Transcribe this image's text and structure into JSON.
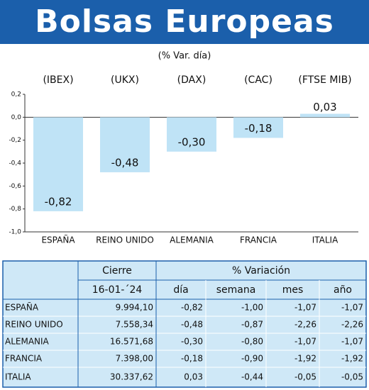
{
  "chart_data": {
    "type": "bar",
    "title": "Bolsas Europeas",
    "subtitle": "(% Var. día)",
    "codes": [
      "(IBEX)",
      "(UKX)",
      "(DAX)",
      "(CAC)",
      "(FTSE MIB)"
    ],
    "categories": [
      "ESPAÑA",
      "REINO UNIDO",
      "ALEMANIA",
      "FRANCIA",
      "ITALIA"
    ],
    "values": [
      -0.82,
      -0.48,
      -0.3,
      -0.18,
      0.03
    ],
    "value_labels": [
      "-0,82",
      "-0,48",
      "-0,30",
      "-0,18",
      "0,03"
    ],
    "color": "#bfe3f6",
    "ylim": [
      -1.0,
      0.2
    ],
    "yticks": [
      {
        "value": 0.2,
        "label": "0,2"
      },
      {
        "value": 0.0,
        "label": "0,0"
      },
      {
        "value": -0.2,
        "label": "-0,2"
      },
      {
        "value": -0.4,
        "label": "-0,4"
      },
      {
        "value": -0.6,
        "label": "-0,6"
      },
      {
        "value": -0.8,
        "label": "-0,8"
      },
      {
        "value": -1.0,
        "label": "-1,0"
      }
    ]
  },
  "table": {
    "group_headers": [
      "Cierre",
      "% Variación"
    ],
    "headers": [
      "16-01-´24",
      "día",
      "semana",
      "mes",
      "año"
    ],
    "rows": [
      [
        "ESPAÑA",
        "9.994,10",
        "-0,82",
        "-1,00",
        "-1,07",
        "-1,07"
      ],
      [
        "REINO UNIDO",
        "7.558,34",
        "-0,48",
        "-0,87",
        "-2,26",
        "-2,26"
      ],
      [
        "ALEMANIA",
        "16.571,68",
        "-0,30",
        "-0,80",
        "-1,07",
        "-1,07"
      ],
      [
        "FRANCIA",
        "7.398,00",
        "-0,18",
        "-0,90",
        "-1,92",
        "-1,92"
      ],
      [
        "ITALIA",
        "30.337,62",
        "0,03",
        "-0,44",
        "-0,05",
        "-0,05"
      ]
    ]
  }
}
